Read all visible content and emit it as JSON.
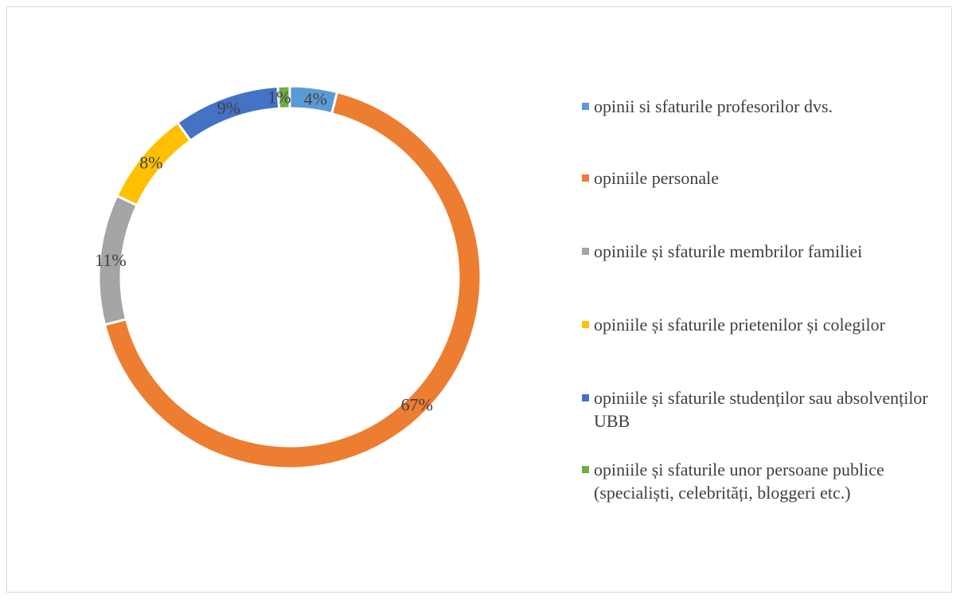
{
  "chart_data": {
    "type": "pie",
    "variant": "doughnut",
    "title": "",
    "slices": [
      {
        "label": "opinii si sfaturile profesorilor dvs.",
        "value": 4,
        "display": "4%",
        "color": "#5b9bd5"
      },
      {
        "label": "opiniile personale",
        "value": 67,
        "display": "67%",
        "color": "#ed7d31"
      },
      {
        "label": "opiniile și sfaturile membrilor familiei",
        "value": 11,
        "display": "11%",
        "color": "#a5a5a5"
      },
      {
        "label": "opiniile și sfaturile prietenilor și colegilor",
        "value": 8,
        "display": "8%",
        "color": "#ffc000"
      },
      {
        "label": "opiniile și sfaturile studenților sau absolvenților UBB",
        "value": 9,
        "display": "9%",
        "color": "#4472c4"
      },
      {
        "label": "opiniile și sfaturile unor persoane publice (specialiști, celebrități, bloggeri etc.)",
        "value": 1,
        "display": "1%",
        "color": "#70ad47"
      }
    ],
    "legend_position": "right"
  }
}
